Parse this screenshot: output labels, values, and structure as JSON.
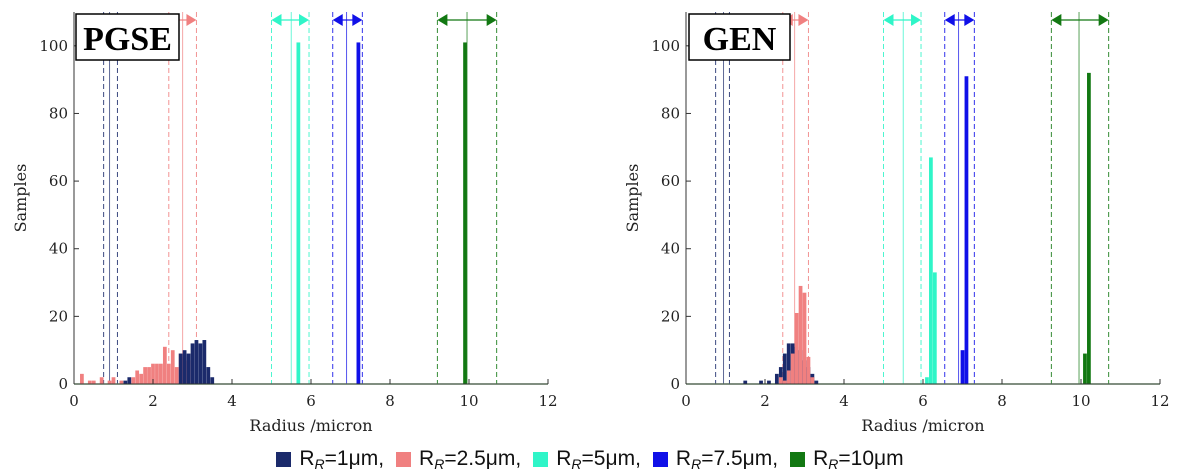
{
  "colors": {
    "r1": "#1b2a6b",
    "r2_5": "#f08080",
    "r5": "#2ff5c8",
    "r7_5": "#1010e8",
    "r10": "#127812",
    "baseline": "#9ad19a"
  },
  "legend": [
    {
      "key": "r1",
      "prefix": "R",
      "sub": "R",
      "suffix": "=1μm,"
    },
    {
      "key": "r2_5",
      "prefix": "R",
      "sub": "R",
      "suffix": "=2.5μm,"
    },
    {
      "key": "r5",
      "prefix": "R",
      "sub": "R",
      "suffix": "=5μm,"
    },
    {
      "key": "r7_5",
      "prefix": "R",
      "sub": "R",
      "suffix": "=7.5μm,"
    },
    {
      "key": "r10",
      "prefix": "R",
      "sub": "R",
      "suffix": "=10μm"
    }
  ],
  "chart_data": [
    {
      "type": "bar",
      "title": "PGSE",
      "xlabel": "Radius /micron",
      "ylabel": "Samples",
      "xlim": [
        0,
        12
      ],
      "ylim": [
        0,
        110
      ],
      "xticks": [
        "0",
        "2",
        "4",
        "6",
        "8",
        "10",
        "12"
      ],
      "yticks": [
        "0",
        "20",
        "40",
        "60",
        "80",
        "100"
      ],
      "grid": false,
      "series": [
        {
          "key": "r2_5",
          "bins": [
            [
              0.2,
              3
            ],
            [
              0.4,
              1
            ],
            [
              0.5,
              1
            ],
            [
              0.7,
              2
            ],
            [
              0.9,
              1
            ],
            [
              1.0,
              2
            ],
            [
              1.2,
              1
            ],
            [
              1.5,
              2
            ],
            [
              1.6,
              4
            ],
            [
              1.7,
              3
            ],
            [
              1.8,
              5
            ],
            [
              1.9,
              5
            ],
            [
              2.0,
              6
            ],
            [
              2.1,
              6
            ],
            [
              2.2,
              6
            ],
            [
              2.3,
              11
            ],
            [
              2.4,
              6
            ],
            [
              2.5,
              10
            ],
            [
              2.6,
              5
            ],
            [
              2.7,
              9
            ],
            [
              2.8,
              8
            ],
            [
              2.9,
              7
            ]
          ],
          "interval": {
            "center": 2.75,
            "low": 2.4,
            "high": 3.1
          }
        },
        {
          "key": "r1",
          "bins": [
            [
              1.3,
              1
            ],
            [
              1.4,
              2
            ],
            [
              2.7,
              9
            ],
            [
              2.8,
              10
            ],
            [
              2.9,
              9
            ],
            [
              3.0,
              12
            ],
            [
              3.1,
              13
            ],
            [
              3.2,
              12
            ],
            [
              3.3,
              13
            ],
            [
              3.4,
              5
            ],
            [
              3.5,
              2
            ]
          ],
          "interval": {
            "center": 0.9,
            "low": 0.75,
            "high": 1.1
          }
        },
        {
          "key": "r5",
          "bins": [
            [
              5.68,
              101
            ]
          ],
          "interval": {
            "center": 5.5,
            "low": 5.0,
            "high": 5.95
          }
        },
        {
          "key": "r7_5",
          "bins": [
            [
              7.2,
              101
            ]
          ],
          "interval": {
            "center": 6.9,
            "low": 6.55,
            "high": 7.3
          }
        },
        {
          "key": "r10",
          "bins": [
            [
              9.9,
              101
            ]
          ],
          "interval": {
            "center": 9.95,
            "low": 9.2,
            "high": 10.7
          }
        }
      ]
    },
    {
      "type": "bar",
      "title": "GEN",
      "xlabel": "Radius /micron",
      "ylabel": "Samples",
      "xlim": [
        0,
        12
      ],
      "ylim": [
        0,
        110
      ],
      "xticks": [
        "0",
        "2",
        "4",
        "6",
        "8",
        "10",
        "12"
      ],
      "yticks": [
        "0",
        "20",
        "40",
        "60",
        "80",
        "100"
      ],
      "grid": false,
      "series": [
        {
          "key": "r1",
          "bins": [
            [
              1.5,
              1
            ],
            [
              1.9,
              1
            ],
            [
              2.1,
              1
            ],
            [
              2.3,
              3
            ],
            [
              2.4,
              5
            ],
            [
              2.5,
              9
            ],
            [
              2.6,
              12
            ],
            [
              2.7,
              12
            ],
            [
              2.8,
              11
            ],
            [
              2.9,
              10
            ],
            [
              3.0,
              7
            ],
            [
              3.1,
              5
            ],
            [
              3.2,
              3
            ],
            [
              3.3,
              1
            ]
          ],
          "interval": {
            "center": 0.95,
            "low": 0.75,
            "high": 1.1
          }
        },
        {
          "key": "r2_5",
          "bins": [
            [
              2.4,
              2
            ],
            [
              2.5,
              1
            ],
            [
              2.6,
              4
            ],
            [
              2.7,
              9
            ],
            [
              2.8,
              21
            ],
            [
              2.9,
              29
            ],
            [
              3.0,
              27
            ],
            [
              3.1,
              8
            ],
            [
              3.2,
              2
            ]
          ],
          "interval": {
            "center": 2.75,
            "low": 2.45,
            "high": 3.1
          }
        },
        {
          "key": "r5",
          "bins": [
            [
              6.1,
              2
            ],
            [
              6.2,
              67
            ],
            [
              6.3,
              33
            ]
          ],
          "interval": {
            "center": 5.5,
            "low": 5.0,
            "high": 5.95
          }
        },
        {
          "key": "r7_5",
          "bins": [
            [
              7.0,
              10
            ],
            [
              7.1,
              91
            ]
          ],
          "interval": {
            "center": 6.9,
            "low": 6.55,
            "high": 7.3
          }
        },
        {
          "key": "r10",
          "bins": [
            [
              10.1,
              9
            ],
            [
              10.2,
              92
            ]
          ],
          "interval": {
            "center": 9.95,
            "low": 9.25,
            "high": 10.7
          }
        }
      ]
    }
  ]
}
